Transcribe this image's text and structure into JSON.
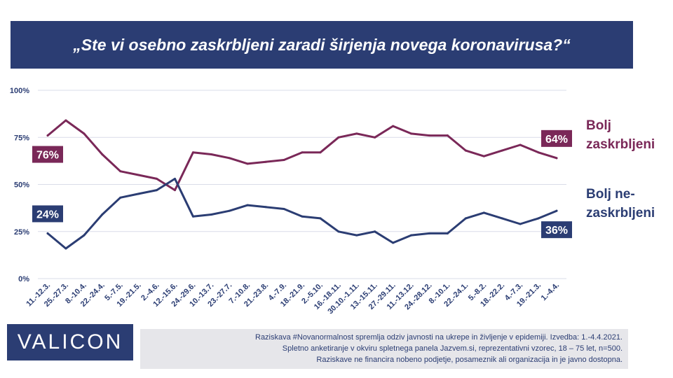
{
  "title": "„Ste vi osebno zaskrbljeni zaradi širjenja novega koronavirusa?“",
  "colors": {
    "concerned": "#7a2858",
    "not_concerned": "#2b3d73",
    "grid": "#d9dce8",
    "footnote_bg": "#e6e6ea"
  },
  "legend": {
    "concerned": "Bolj\nzaskrbljeni",
    "not_concerned": "Bolj ne-\nzaskrbljeni"
  },
  "logo": {
    "text": "VALICON"
  },
  "footnote": {
    "line1": "Raziskava #Novanormalnost spremlja odziv javnosti na ukrepe in življenje v epidemiji. Izvedba: 1.-4.4.2021.",
    "line2": "Spletno anketiranje v okviru spletnega panela Jazvem.si, reprezentativni vzorec, 18 – 75 let, n=500.",
    "line3": "Raziskave ne financira nobeno podjetje, posameznik ali organizacija in je javno dostopna."
  },
  "chart_data": {
    "type": "line",
    "categories": [
      "11.-12.3.",
      "25.-27.3.",
      "8.-10.4.",
      "22.-24.4.",
      "5.-7.5.",
      "19.-21.5.",
      "2.-4.6.",
      "12.-15.6.",
      "24.-29.6.",
      "10.-13.7.",
      "23.-27.7.",
      "7.-10.8.",
      "21.-23.8.",
      "4.-7.9.",
      "18.-21.9.",
      "2.-5.10.",
      "16.-18.11.",
      "30.10.-1.11.",
      "13.-15.11.",
      "27.-29.11.",
      "11.-13.12.",
      "24.-28.12.",
      "8.-10.1.",
      "22.-24.1.",
      "5.-8.2.",
      "18.-22.2.",
      "4.-7.3.",
      "19.-21.3.",
      "1.-4.4."
    ],
    "ylim": [
      0,
      100
    ],
    "yticks": [
      "0%",
      "25%",
      "50%",
      "75%",
      "100%"
    ],
    "grid": true,
    "series": [
      {
        "name": "Bolj zaskrbljeni",
        "color": "#7a2858",
        "values": [
          76,
          84,
          77,
          66,
          57,
          55,
          53,
          47,
          67,
          66,
          64,
          61,
          62,
          63,
          67,
          67,
          75,
          77,
          75,
          81,
          77,
          76,
          76,
          68,
          65,
          68,
          71,
          67,
          64
        ],
        "labels": [
          {
            "index": 0,
            "text": "76%"
          },
          {
            "index": 28,
            "text": "64%"
          }
        ]
      },
      {
        "name": "Bolj ne-zaskrbljeni",
        "color": "#2b3d73",
        "values": [
          24,
          16,
          23,
          34,
          43,
          45,
          47,
          53,
          33,
          34,
          36,
          39,
          38,
          37,
          33,
          32,
          25,
          23,
          25,
          19,
          23,
          24,
          24,
          32,
          35,
          32,
          29,
          32,
          36
        ],
        "labels": [
          {
            "index": 0,
            "text": "24%"
          },
          {
            "index": 28,
            "text": "36%"
          }
        ]
      }
    ]
  }
}
